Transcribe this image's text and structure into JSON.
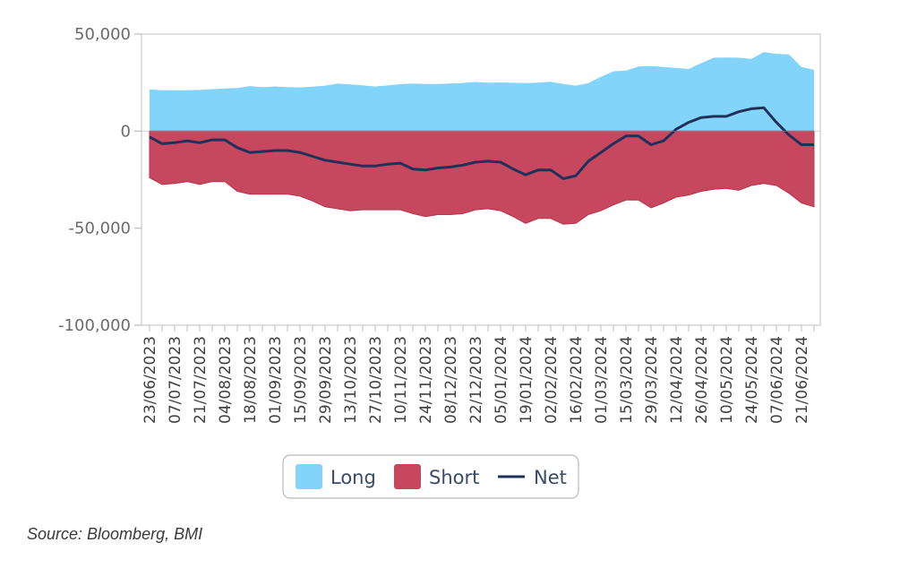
{
  "source": "Source: Bloomberg, BMI",
  "colors": {
    "long": "#83d4fb",
    "short": "#c7475f",
    "net": "#1f3159"
  },
  "chart_data": {
    "type": "area",
    "ylim": [
      -100000,
      50000
    ],
    "y_ticks": [
      50000,
      0,
      -50000,
      -100000
    ],
    "y_tick_labels": [
      "50,000",
      "0",
      "-50,000",
      "-100,000"
    ],
    "x": [
      "23/06/2023",
      "30/06/2023",
      "07/07/2023",
      "14/07/2023",
      "21/07/2023",
      "28/07/2023",
      "04/08/2023",
      "11/08/2023",
      "18/08/2023",
      "25/08/2023",
      "01/09/2023",
      "08/09/2023",
      "15/09/2023",
      "22/09/2023",
      "29/09/2023",
      "06/10/2023",
      "13/10/2023",
      "20/10/2023",
      "27/10/2023",
      "03/11/2023",
      "10/11/2023",
      "17/11/2023",
      "24/11/2023",
      "01/12/2023",
      "08/12/2023",
      "15/12/2023",
      "22/12/2023",
      "29/12/2023",
      "05/01/2024",
      "12/01/2024",
      "19/01/2024",
      "26/01/2024",
      "02/02/2024",
      "09/02/2024",
      "16/02/2024",
      "23/02/2024",
      "01/03/2024",
      "08/03/2024",
      "15/03/2024",
      "22/03/2024",
      "29/03/2024",
      "05/04/2024",
      "12/04/2024",
      "19/04/2024",
      "26/04/2024",
      "03/05/2024",
      "10/05/2024",
      "17/05/2024",
      "24/05/2024",
      "31/05/2024",
      "07/06/2024",
      "14/06/2024",
      "21/06/2024",
      "28/06/2024"
    ],
    "x_tick_labels": [
      "23/06/2023",
      "07/07/2023",
      "21/07/2023",
      "04/08/2023",
      "18/08/2023",
      "01/09/2023",
      "15/09/2023",
      "29/09/2023",
      "13/10/2023",
      "27/10/2023",
      "10/11/2023",
      "24/11/2023",
      "08/12/2023",
      "22/12/2023",
      "05/01/2024",
      "19/01/2024",
      "02/02/2024",
      "16/02/2024",
      "01/03/2024",
      "15/03/2024",
      "29/03/2024",
      "12/04/2024",
      "26/04/2024",
      "10/05/2024",
      "24/05/2024",
      "07/06/2024",
      "21/06/2024"
    ],
    "series": [
      {
        "name": "Long",
        "type": "area",
        "values": [
          21500,
          21000,
          21000,
          21000,
          21200,
          21600,
          22000,
          22200,
          23200,
          22600,
          23000,
          22700,
          22500,
          22900,
          23400,
          24500,
          24100,
          23600,
          23000,
          23500,
          24200,
          24500,
          24300,
          24300,
          24500,
          24800,
          25300,
          24900,
          25100,
          24900,
          24700,
          25000,
          25400,
          24300,
          23400,
          24700,
          28000,
          30800,
          31200,
          33300,
          33500,
          33000,
          32500,
          32000,
          35000,
          37800,
          37900,
          37800,
          37200,
          40700,
          39800,
          39500,
          33000,
          31600
        ]
      },
      {
        "name": "Short",
        "type": "area",
        "values": [
          -24000,
          -27500,
          -27000,
          -26000,
          -27500,
          -26000,
          -26000,
          -31000,
          -32500,
          -32500,
          -32500,
          -32500,
          -33500,
          -36000,
          -39000,
          -40000,
          -41000,
          -40500,
          -40500,
          -40500,
          -40500,
          -42500,
          -44000,
          -43000,
          -43000,
          -42500,
          -40500,
          -40000,
          -41000,
          -44000,
          -47500,
          -45000,
          -45000,
          -48000,
          -47500,
          -43000,
          -41000,
          -38000,
          -35500,
          -35500,
          -39500,
          -37000,
          -34000,
          -33000,
          -31000,
          -30000,
          -29500,
          -30500,
          -28000,
          -27000,
          -28000,
          -32000,
          -37000,
          -39000
        ]
      },
      {
        "name": "Net",
        "type": "line",
        "values": [
          -3000,
          -6500,
          -6000,
          -5000,
          -6000,
          -4500,
          -4500,
          -8500,
          -11000,
          -10500,
          -10000,
          -10000,
          -11000,
          -13000,
          -15000,
          -16000,
          -17000,
          -18000,
          -18000,
          -17000,
          -16500,
          -19500,
          -20000,
          -19000,
          -18500,
          -17500,
          -16000,
          -15500,
          -16000,
          -19500,
          -22500,
          -20000,
          -20000,
          -24500,
          -23000,
          -15500,
          -11000,
          -6500,
          -2500,
          -2500,
          -7000,
          -5000,
          1000,
          4500,
          7000,
          7600,
          7600,
          10000,
          11500,
          12000,
          4500,
          -2000,
          -7000,
          -7000
        ]
      }
    ],
    "legend": {
      "position": "bottom",
      "entries": [
        "Long",
        "Short",
        "Net"
      ]
    },
    "grid": false
  }
}
